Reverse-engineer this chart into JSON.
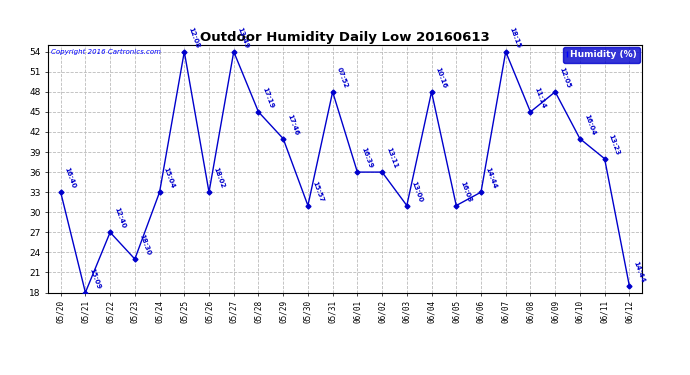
{
  "title": "Outdoor Humidity Daily Low 20160613",
  "copyright_text": "Copyright 2016 Cartronics.com",
  "ylabel": "Humidity (%)",
  "ylim": [
    18,
    55
  ],
  "yticks": [
    18,
    21,
    24,
    27,
    30,
    33,
    36,
    39,
    42,
    45,
    48,
    51,
    54
  ],
  "bg_color": "#ffffff",
  "line_color": "#0000cc",
  "grid_color": "#bbbbbb",
  "points": [
    {
      "x": 0,
      "label": "05/20",
      "value": 33,
      "time": "16:40"
    },
    {
      "x": 1,
      "label": "05/21",
      "value": 18,
      "time": "15:09"
    },
    {
      "x": 2,
      "label": "05/22",
      "value": 27,
      "time": "12:40"
    },
    {
      "x": 3,
      "label": "05/23",
      "value": 23,
      "time": "18:30"
    },
    {
      "x": 4,
      "label": "05/24",
      "value": 33,
      "time": "15:04"
    },
    {
      "x": 5,
      "label": "05/25",
      "value": 54,
      "time": "12:08"
    },
    {
      "x": 6,
      "label": "05/26",
      "value": 33,
      "time": "18:02"
    },
    {
      "x": 7,
      "label": "05/27",
      "value": 54,
      "time": "13:49"
    },
    {
      "x": 8,
      "label": "05/28",
      "value": 45,
      "time": "17:19"
    },
    {
      "x": 9,
      "label": "05/29",
      "value": 41,
      "time": "17:46"
    },
    {
      "x": 10,
      "label": "05/30",
      "value": 31,
      "time": "15:57"
    },
    {
      "x": 11,
      "label": "05/31",
      "value": 48,
      "time": "07:52"
    },
    {
      "x": 12,
      "label": "06/01",
      "value": 36,
      "time": "16:39"
    },
    {
      "x": 13,
      "label": "06/02",
      "value": 36,
      "time": "13:11"
    },
    {
      "x": 14,
      "label": "06/03",
      "value": 31,
      "time": "13:00"
    },
    {
      "x": 15,
      "label": "06/04",
      "value": 48,
      "time": "10:16"
    },
    {
      "x": 16,
      "label": "06/05",
      "value": 31,
      "time": "16:08"
    },
    {
      "x": 17,
      "label": "06/06",
      "value": 33,
      "time": "14:44"
    },
    {
      "x": 18,
      "label": "06/07",
      "value": 54,
      "time": "18:15"
    },
    {
      "x": 19,
      "label": "06/08",
      "value": 45,
      "time": "11:14"
    },
    {
      "x": 20,
      "label": "06/09",
      "value": 48,
      "time": "12:05"
    },
    {
      "x": 21,
      "label": "06/10",
      "value": 41,
      "time": "16:04"
    },
    {
      "x": 22,
      "label": "06/11",
      "value": 38,
      "time": "13:23"
    },
    {
      "x": 23,
      "label": "06/12",
      "value": 19,
      "time": "14:44"
    }
  ]
}
